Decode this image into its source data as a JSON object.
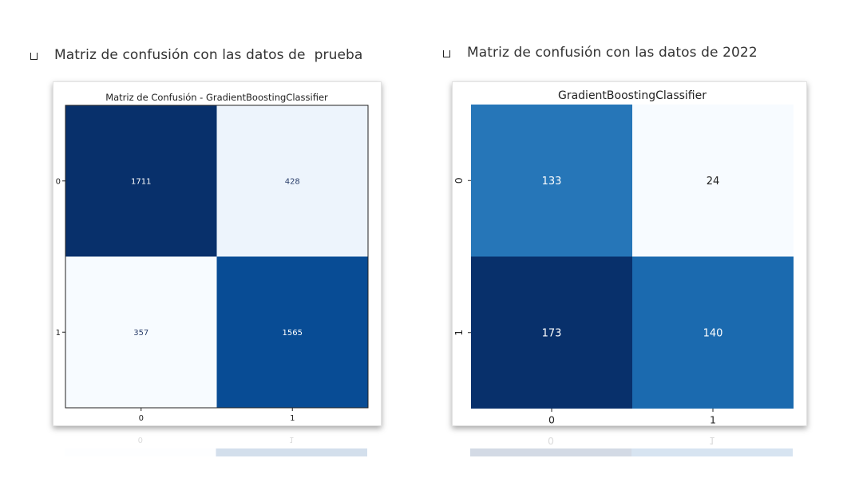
{
  "bullets": [
    {
      "text": "Matriz de confusión con las datos de  prueba"
    },
    {
      "text": "Matriz de confusión con las datos de 2022"
    }
  ],
  "chart_data": [
    {
      "type": "heatmap",
      "title": "Matriz de Confusión - GradientBoostingClassifier",
      "x_tick_labels": [
        "0",
        "1"
      ],
      "y_tick_labels": [
        "0",
        "1"
      ],
      "values": [
        [
          1711,
          428
        ],
        [
          357,
          1565
        ]
      ],
      "colormap": "Blues",
      "colors": {
        "low": "#f7fbff",
        "high": "#08306b"
      },
      "colorbar": false,
      "grid": false
    },
    {
      "type": "heatmap",
      "title": "GradientBoostingClassifier",
      "x_tick_labels": [
        "0",
        "1"
      ],
      "y_tick_labels": [
        "0",
        "1"
      ],
      "values": [
        [
          133,
          24
        ],
        [
          173,
          140
        ]
      ],
      "colormap": "Blues",
      "colors": {
        "low": "#f7fbff",
        "high": "#08306b"
      },
      "colorbar": false,
      "grid": false
    }
  ]
}
